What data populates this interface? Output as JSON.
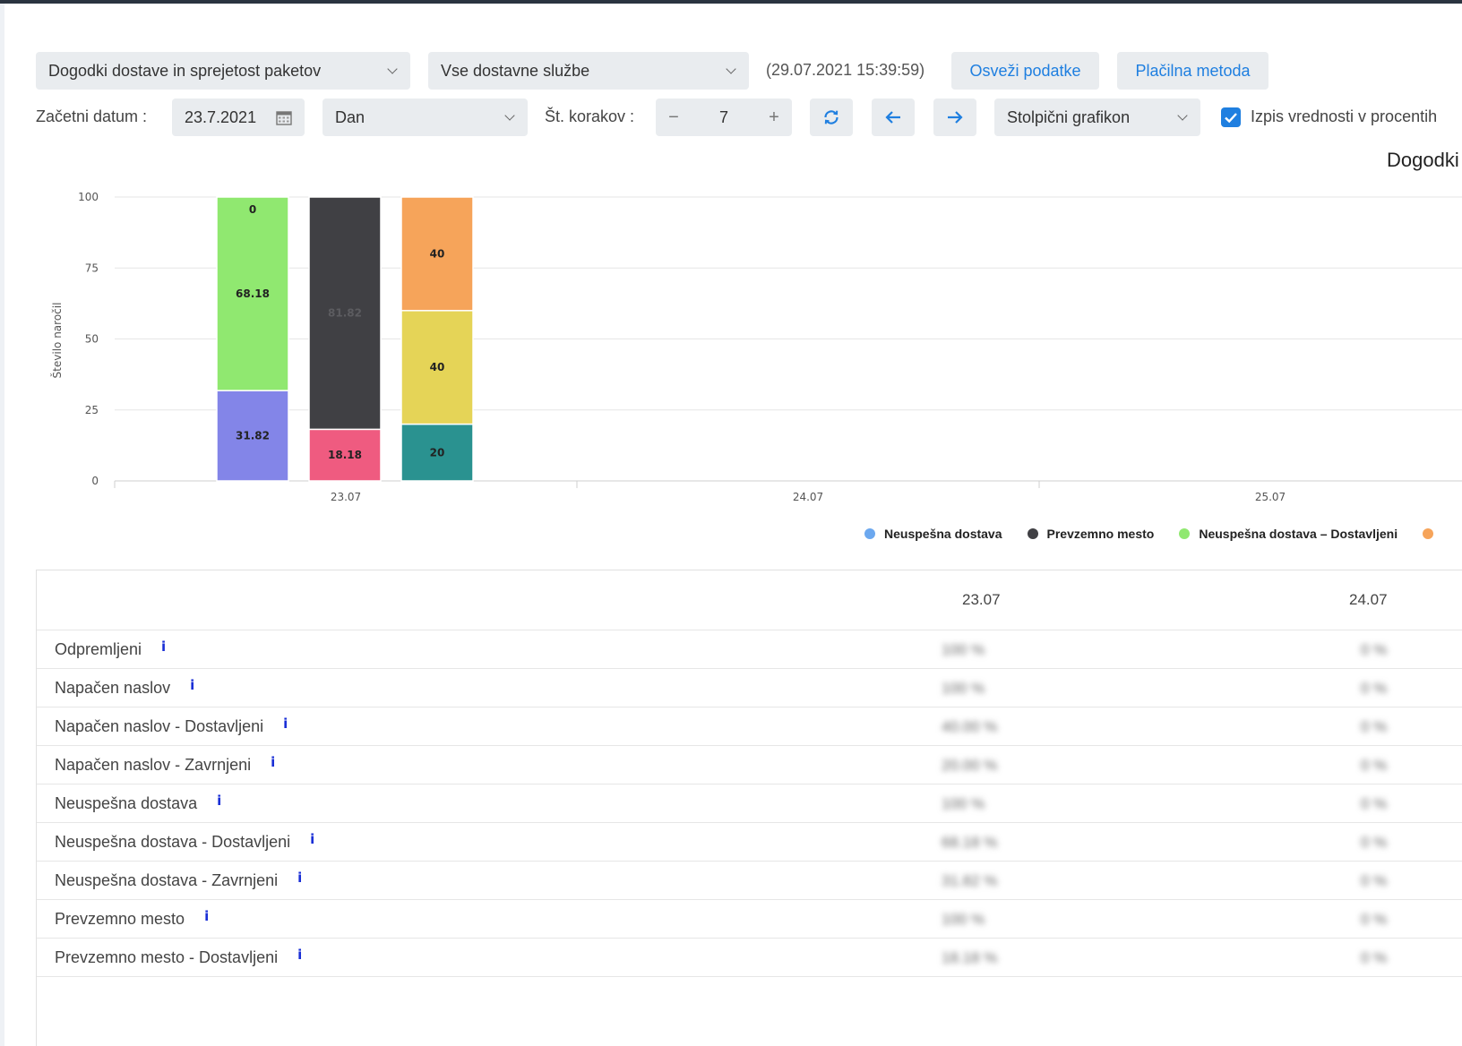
{
  "toolbar": {
    "report_select": "Dogodki dostave in sprejetost paketov",
    "service_select": "Vse dostavne službe",
    "timestamp": "(29.07.2021 15:39:59)",
    "refresh_button": "Osveži podatke",
    "payment_button": "Plačilna metoda",
    "start_date_label": "Začetni datum :",
    "start_date_value": "23.7.2021",
    "period_select": "Dan",
    "steps_label": "Št. korakov :",
    "steps_value": "7",
    "minus": "−",
    "plus": "+",
    "chart_type_select": "Stolpični grafikon",
    "percent_checkbox_label": "Izpis vrednosti v procentih",
    "percent_checked": true
  },
  "chart_data": {
    "type": "bar",
    "stacked": true,
    "title": "Dogodki",
    "ylabel": "Število naročil",
    "ylim": [
      0,
      100
    ],
    "yticks": [
      0,
      25,
      50,
      75,
      100
    ],
    "categories": [
      "23.07",
      "24.07",
      "25.07"
    ],
    "bars": [
      {
        "category": "23.07",
        "segments": [
          {
            "value": 31.82,
            "color": "#8385e8",
            "label": "31.82"
          },
          {
            "value": 68.18,
            "color": "#90e870",
            "label": "68.18"
          },
          {
            "value": 0,
            "color": "#90e870",
            "label": "0"
          }
        ]
      },
      {
        "category": "23.07",
        "segments": [
          {
            "value": 18.18,
            "color": "#ef5b80",
            "label": "18.18"
          },
          {
            "value": 81.82,
            "color": "#404044",
            "label": "81.82"
          }
        ]
      },
      {
        "category": "23.07",
        "segments": [
          {
            "value": 20,
            "color": "#2a9290",
            "label": "20"
          },
          {
            "value": 40,
            "color": "#e5d457",
            "label": "40"
          },
          {
            "value": 40,
            "color": "#f6a45a",
            "label": "40"
          }
        ]
      }
    ],
    "legend": [
      {
        "name": "Neuspešna dostava",
        "color": "#6ca8ef"
      },
      {
        "name": "Prevzemno mesto",
        "color": "#404044"
      },
      {
        "name": "Neuspešna dostava – Dostavljeni",
        "color": "#90e870"
      }
    ],
    "legend_partial_color": "#f6a45a"
  },
  "table": {
    "columns": [
      "23.07",
      "24.07"
    ],
    "rows": [
      {
        "name": "Odpremljeni",
        "values": [
          "100 %",
          "0 %"
        ]
      },
      {
        "name": "Napačen naslov",
        "values": [
          "100 %",
          "0 %"
        ]
      },
      {
        "name": "Napačen naslov - Dostavljeni",
        "values": [
          "40.00 %",
          "0 %"
        ]
      },
      {
        "name": "Napačen naslov - Zavrnjeni",
        "values": [
          "20.00 %",
          "0 %"
        ]
      },
      {
        "name": "Neuspešna dostava",
        "values": [
          "100 %",
          "0 %"
        ]
      },
      {
        "name": "Neuspešna dostava - Dostavljeni",
        "values": [
          "68.18 %",
          "0 %"
        ]
      },
      {
        "name": "Neuspešna dostava - Zavrnjeni",
        "values": [
          "31.82 %",
          "0 %"
        ]
      },
      {
        "name": "Prevzemno mesto",
        "values": [
          "100 %",
          "0 %"
        ]
      },
      {
        "name": "Prevzemno mesto - Dostavljeni",
        "values": [
          "18.18 %",
          "0 %"
        ]
      }
    ],
    "info_glyph": "i"
  }
}
